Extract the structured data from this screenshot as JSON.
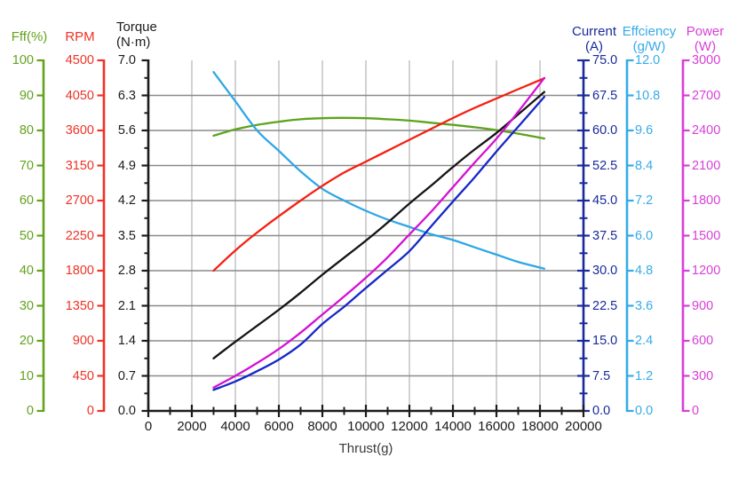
{
  "chart_data": {
    "type": "line",
    "title": "",
    "background": "#ffffff",
    "grid": true,
    "x_axis": {
      "label": "Thrust(g)",
      "min": 0,
      "max": 20000,
      "major_tick_step": 2000,
      "minor_tick_step": 1000,
      "tick_labels": [
        "0",
        "2000",
        "4000",
        "6000",
        "8000",
        "10000",
        "12000",
        "14000",
        "16000",
        "18000",
        "20000"
      ]
    },
    "y_axes": [
      {
        "id": "fff",
        "header_lines": [
          "Fff(%)"
        ],
        "color": "#63a21e",
        "min": 0,
        "max": 100,
        "tick_labels": [
          "0",
          "10",
          "20",
          "30",
          "40",
          "50",
          "60",
          "70",
          "80",
          "90",
          "100"
        ]
      },
      {
        "id": "rpm",
        "header_lines": [
          "RPM"
        ],
        "color": "#ee3326",
        "min": 0,
        "max": 4500,
        "tick_labels": [
          "0",
          "450",
          "900",
          "1350",
          "1800",
          "2250",
          "2700",
          "3150",
          "3600",
          "4050",
          "4500"
        ]
      },
      {
        "id": "torque",
        "header_lines": [
          "Torque",
          "(N·m)"
        ],
        "color": "#1c1c1c",
        "min": 0,
        "max": 7,
        "tick_labels": [
          "0.0",
          "0.7",
          "1.4",
          "2.1",
          "2.8",
          "3.5",
          "4.2",
          "4.9",
          "5.6",
          "6.3",
          "7.0"
        ]
      },
      {
        "id": "current",
        "header_lines": [
          "Current",
          "(A)"
        ],
        "color": "#182a9b",
        "min": 0,
        "max": 75,
        "tick_labels": [
          "0.0",
          "7.5",
          "15.0",
          "22.5",
          "30.0",
          "37.5",
          "45.0",
          "52.5",
          "60.0",
          "67.5",
          "75.0"
        ]
      },
      {
        "id": "efficiency",
        "header_lines": [
          "Effciency",
          "(g/W)"
        ],
        "color": "#35abe8",
        "min": 0,
        "max": 12,
        "tick_labels": [
          "0.0",
          "1.2",
          "2.4",
          "3.6",
          "4.8",
          "6.0",
          "7.2",
          "8.4",
          "9.6",
          "10.8",
          "12.0"
        ]
      },
      {
        "id": "power",
        "header_lines": [
          "Power",
          "(W)"
        ],
        "color": "#d83fd8",
        "min": 0,
        "max": 3000,
        "tick_labels": [
          "0",
          "300",
          "600",
          "900",
          "1200",
          "1500",
          "1800",
          "2100",
          "2400",
          "2700",
          "3000"
        ]
      }
    ],
    "series": [
      {
        "id": "fff",
        "name": "Fff(%)",
        "axis": "fff",
        "color": "#5da41c",
        "x": [
          3000,
          4000,
          5000,
          6000,
          7000,
          8000,
          9000,
          10000,
          11000,
          12000,
          13000,
          14000,
          15000,
          16000,
          17000,
          18200
        ],
        "values": [
          78.5,
          80.3,
          81.6,
          82.5,
          83.2,
          83.5,
          83.6,
          83.5,
          83.2,
          82.8,
          82.2,
          81.6,
          80.9,
          80.1,
          79.1,
          77.7
        ]
      },
      {
        "id": "efficiency",
        "name": "Effciency (g/W)",
        "axis": "efficiency",
        "color": "#2ea7e6",
        "x": [
          3000,
          4000,
          5000,
          6000,
          7000,
          8000,
          9000,
          10000,
          11000,
          12000,
          13000,
          14000,
          15000,
          16000,
          17000,
          18200
        ],
        "values": [
          11.6,
          10.6,
          9.6,
          8.9,
          8.2,
          7.6,
          7.2,
          6.85,
          6.55,
          6.3,
          6.05,
          5.85,
          5.6,
          5.35,
          5.1,
          4.87
        ]
      },
      {
        "id": "rpm",
        "name": "RPM",
        "axis": "rpm",
        "color": "#f51f13",
        "x": [
          3000,
          4000,
          5000,
          6000,
          7000,
          8000,
          9000,
          10000,
          11000,
          12000,
          13000,
          14000,
          15000,
          16000,
          17000,
          18200
        ],
        "values": [
          1800,
          2060,
          2290,
          2500,
          2700,
          2890,
          3060,
          3200,
          3340,
          3480,
          3620,
          3760,
          3890,
          4010,
          4130,
          4270
        ]
      },
      {
        "id": "torque",
        "name": "Torque (N·m)",
        "axis": "torque",
        "color": "#141414",
        "x": [
          3000,
          4000,
          5000,
          6000,
          7000,
          8000,
          9000,
          10000,
          11000,
          12000,
          13000,
          14000,
          15000,
          16000,
          17000,
          18200
        ],
        "values": [
          1.05,
          1.38,
          1.7,
          2.02,
          2.36,
          2.72,
          3.06,
          3.4,
          3.76,
          4.14,
          4.5,
          4.87,
          5.22,
          5.55,
          5.92,
          6.37
        ]
      },
      {
        "id": "current",
        "name": "Current (A)",
        "axis": "current",
        "color": "#1527c8",
        "x": [
          3000,
          4000,
          5000,
          6000,
          7000,
          8000,
          9000,
          10000,
          11000,
          12000,
          13000,
          14000,
          15000,
          16000,
          17000,
          18200
        ],
        "values": [
          4.5,
          6.3,
          8.5,
          11.0,
          14.2,
          18.6,
          22.3,
          26.3,
          30.2,
          34.2,
          39.5,
          44.8,
          50.0,
          55.5,
          60.8,
          67.2
        ]
      },
      {
        "id": "power",
        "name": "Power (W)",
        "axis": "power",
        "color": "#d411d4",
        "x": [
          3000,
          4000,
          5000,
          6000,
          7000,
          8000,
          9000,
          10000,
          11000,
          12000,
          13000,
          14000,
          15000,
          16000,
          17000,
          18200
        ],
        "values": [
          200,
          300,
          410,
          530,
          670,
          825,
          980,
          1140,
          1315,
          1510,
          1705,
          1915,
          2125,
          2330,
          2560,
          2850
        ]
      }
    ]
  }
}
